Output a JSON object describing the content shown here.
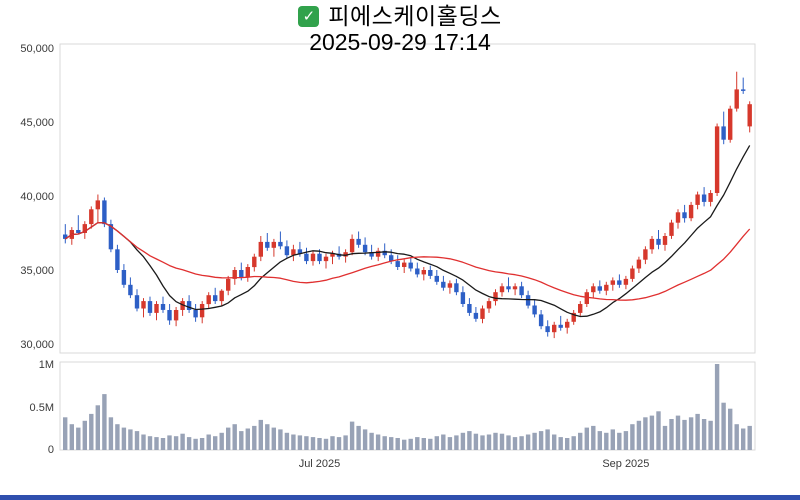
{
  "header": {
    "title": "피에스케이홀딩스",
    "datetime": "2025-09-29 17:14"
  },
  "icons": {
    "checkbox": "✓"
  },
  "page": {
    "background": "#ffffff",
    "bottom_bar_color": "#2f4fae",
    "border_color": "#d9d9d9",
    "axis_text_color": "#3a3a3a"
  },
  "chart_data": {
    "type": "candlestick",
    "title": "피에스케이홀딩스",
    "as_of": "2025-09-29 17:14",
    "legend_position": "none",
    "grid": false,
    "price_axis": {
      "labels": [
        "50,000",
        "45,000",
        "40,000",
        "35,000",
        "30,000"
      ],
      "values": [
        50000,
        45000,
        40000,
        35000,
        30000
      ],
      "ylim": [
        29500,
        50300
      ]
    },
    "volume_axis": {
      "labels": [
        "1M",
        "0.5M",
        "0"
      ],
      "values": [
        1000000,
        500000,
        0
      ],
      "ylim": [
        0,
        1000000
      ]
    },
    "x_ticks": [
      {
        "label": "Jul 2025",
        "index": 39
      },
      {
        "label": "Sep 2025",
        "index": 86
      }
    ],
    "colors": {
      "up": "#d6382c",
      "down": "#2d5fc6",
      "volume": "#98a2b6",
      "ma_short": "#1a1a1a",
      "ma_long": "#e03030"
    },
    "ma_lines": [
      {
        "name": "short-ma",
        "period": 10,
        "color": "#1a1a1a"
      },
      {
        "name": "long-ma",
        "period": 30,
        "color": "#e03030"
      }
    ],
    "candle_fields": [
      "open",
      "high",
      "low",
      "close",
      "volume"
    ],
    "candles": [
      [
        37400,
        38100,
        36800,
        37100,
        380000
      ],
      [
        37100,
        37900,
        36700,
        37700,
        300000
      ],
      [
        37700,
        38700,
        37400,
        37500,
        260000
      ],
      [
        37500,
        38300,
        37100,
        38100,
        340000
      ],
      [
        38100,
        39300,
        37800,
        39100,
        420000
      ],
      [
        39100,
        40100,
        38200,
        39700,
        520000
      ],
      [
        39700,
        39900,
        37900,
        38100,
        650000
      ],
      [
        38100,
        38400,
        36200,
        36400,
        380000
      ],
      [
        36400,
        36700,
        34800,
        35000,
        300000
      ],
      [
        35000,
        35400,
        33800,
        34000,
        260000
      ],
      [
        34000,
        34500,
        33100,
        33300,
        240000
      ],
      [
        33300,
        33700,
        32200,
        32400,
        220000
      ],
      [
        32400,
        33100,
        31800,
        32900,
        180000
      ],
      [
        32900,
        33200,
        31900,
        32100,
        160000
      ],
      [
        32100,
        32900,
        31600,
        32700,
        150000
      ],
      [
        32700,
        33200,
        32100,
        32300,
        140000
      ],
      [
        32300,
        32700,
        31300,
        31600,
        170000
      ],
      [
        31600,
        32500,
        31200,
        32300,
        160000
      ],
      [
        32300,
        33100,
        31900,
        32900,
        190000
      ],
      [
        32900,
        33300,
        32100,
        32300,
        150000
      ],
      [
        32300,
        32700,
        31500,
        31800,
        130000
      ],
      [
        31800,
        32900,
        31400,
        32700,
        140000
      ],
      [
        32700,
        33500,
        32400,
        33300,
        180000
      ],
      [
        33300,
        33800,
        32700,
        32900,
        160000
      ],
      [
        32900,
        33700,
        32600,
        33600,
        200000
      ],
      [
        33600,
        34600,
        33300,
        34400,
        260000
      ],
      [
        34400,
        35200,
        34000,
        35000,
        300000
      ],
      [
        35000,
        35500,
        34300,
        34500,
        220000
      ],
      [
        34500,
        35400,
        34200,
        35200,
        250000
      ],
      [
        35200,
        36100,
        34900,
        35900,
        280000
      ],
      [
        35900,
        37300,
        35600,
        36900,
        350000
      ],
      [
        36900,
        37500,
        36300,
        36500,
        300000
      ],
      [
        36500,
        37100,
        35900,
        36900,
        260000
      ],
      [
        36900,
        37600,
        36400,
        36600,
        240000
      ],
      [
        36600,
        37000,
        35800,
        36000,
        200000
      ],
      [
        36000,
        36700,
        35600,
        36400,
        180000
      ],
      [
        36400,
        36900,
        35900,
        36100,
        170000
      ],
      [
        36100,
        36500,
        35400,
        35600,
        160000
      ],
      [
        35600,
        36300,
        35300,
        36100,
        150000
      ],
      [
        36100,
        36400,
        35400,
        35600,
        140000
      ],
      [
        35600,
        36100,
        35100,
        35900,
        130000
      ],
      [
        35900,
        36300,
        35400,
        36100,
        160000
      ],
      [
        36100,
        36600,
        35700,
        35900,
        150000
      ],
      [
        35900,
        36400,
        35500,
        36200,
        170000
      ],
      [
        36200,
        37400,
        36000,
        37100,
        330000
      ],
      [
        37100,
        37600,
        36500,
        36700,
        280000
      ],
      [
        36700,
        37200,
        36000,
        36200,
        240000
      ],
      [
        36200,
        36700,
        35700,
        35900,
        200000
      ],
      [
        35900,
        36500,
        35600,
        36300,
        180000
      ],
      [
        36300,
        36800,
        35800,
        36000,
        160000
      ],
      [
        36000,
        36400,
        35400,
        35600,
        150000
      ],
      [
        35600,
        36000,
        35000,
        35200,
        140000
      ],
      [
        35200,
        35700,
        34800,
        35500,
        120000
      ],
      [
        35500,
        35800,
        34900,
        35100,
        130000
      ],
      [
        35100,
        35500,
        34500,
        34700,
        150000
      ],
      [
        34700,
        35200,
        34300,
        35000,
        140000
      ],
      [
        35000,
        35300,
        34400,
        34600,
        130000
      ],
      [
        34600,
        35000,
        34000,
        34200,
        160000
      ],
      [
        34200,
        34600,
        33600,
        33800,
        180000
      ],
      [
        33800,
        34300,
        33400,
        34100,
        150000
      ],
      [
        34100,
        34400,
        33300,
        33500,
        170000
      ],
      [
        33500,
        33900,
        32500,
        32700,
        200000
      ],
      [
        32700,
        33100,
        31900,
        32100,
        220000
      ],
      [
        32100,
        32500,
        31500,
        31700,
        190000
      ],
      [
        31700,
        32600,
        31400,
        32400,
        170000
      ],
      [
        32400,
        33100,
        32100,
        32900,
        180000
      ],
      [
        32900,
        33700,
        32600,
        33500,
        200000
      ],
      [
        33500,
        34100,
        33200,
        33900,
        190000
      ],
      [
        33900,
        34500,
        33500,
        33700,
        170000
      ],
      [
        33700,
        34100,
        33300,
        33900,
        150000
      ],
      [
        33900,
        34200,
        33100,
        33300,
        160000
      ],
      [
        33300,
        33600,
        32400,
        32600,
        180000
      ],
      [
        32600,
        33000,
        31800,
        32000,
        200000
      ],
      [
        32000,
        32300,
        31000,
        31200,
        220000
      ],
      [
        31200,
        31600,
        30500,
        30800,
        240000
      ],
      [
        30800,
        31500,
        30400,
        31300,
        180000
      ],
      [
        31300,
        31900,
        30900,
        31100,
        150000
      ],
      [
        31100,
        31700,
        30700,
        31500,
        140000
      ],
      [
        31500,
        32300,
        31300,
        32100,
        160000
      ],
      [
        32100,
        32900,
        31900,
        32700,
        200000
      ],
      [
        32700,
        33700,
        32500,
        33500,
        260000
      ],
      [
        33500,
        34100,
        33100,
        33900,
        280000
      ],
      [
        33900,
        34300,
        33400,
        33600,
        220000
      ],
      [
        33600,
        34200,
        33300,
        34000,
        200000
      ],
      [
        34000,
        34500,
        33600,
        34300,
        240000
      ],
      [
        34300,
        34700,
        33800,
        34000,
        200000
      ],
      [
        34000,
        34600,
        33700,
        34400,
        220000
      ],
      [
        34400,
        35300,
        34200,
        35100,
        300000
      ],
      [
        35100,
        35900,
        34800,
        35700,
        340000
      ],
      [
        35700,
        36600,
        35400,
        36400,
        380000
      ],
      [
        36400,
        37300,
        36100,
        37100,
        400000
      ],
      [
        37100,
        37700,
        36400,
        36700,
        450000
      ],
      [
        36700,
        37500,
        36300,
        37300,
        280000
      ],
      [
        37300,
        38400,
        37100,
        38200,
        360000
      ],
      [
        38200,
        39100,
        37800,
        38900,
        400000
      ],
      [
        38900,
        39400,
        38200,
        38500,
        350000
      ],
      [
        38500,
        39600,
        38300,
        39400,
        380000
      ],
      [
        39400,
        40300,
        39100,
        40100,
        420000
      ],
      [
        40100,
        40600,
        39300,
        39600,
        360000
      ],
      [
        39600,
        40400,
        39300,
        40200,
        340000
      ],
      [
        40200,
        44900,
        40000,
        44700,
        1000000
      ],
      [
        44700,
        45700,
        43500,
        43800,
        550000
      ],
      [
        43800,
        46100,
        43600,
        45900,
        480000
      ],
      [
        45900,
        48400,
        45700,
        47200,
        300000
      ],
      [
        47200,
        48000,
        46900,
        47100,
        250000
      ],
      [
        44700,
        46400,
        44300,
        46200,
        280000
      ]
    ]
  }
}
